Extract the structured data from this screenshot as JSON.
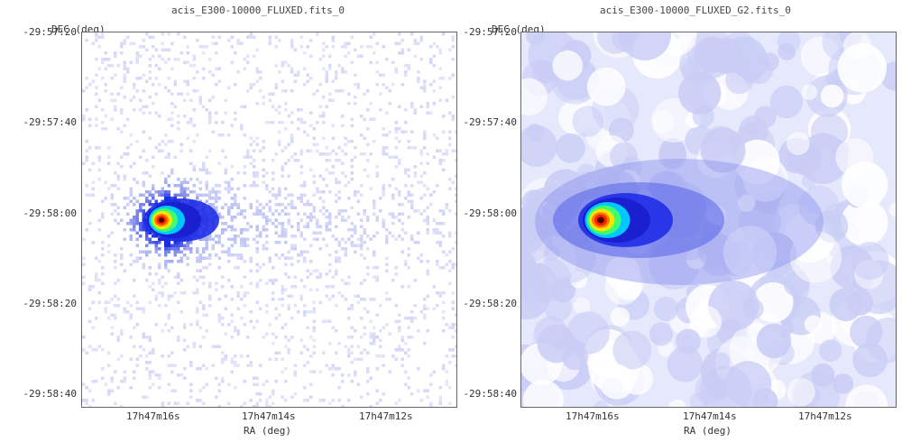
{
  "chart_data": [
    {
      "type": "heatmap",
      "title": "acis_E300-10000_FLUXED.fits_0",
      "xlabel": "RA (deg)",
      "ylabel": "DEC (deg)",
      "x_ticks": [
        "17h47m16s",
        "17h47m14s",
        "17h47m12s"
      ],
      "y_ticks": [
        "-29:57:20",
        "-29:57:40",
        "-29:58:00",
        "-29:58:20",
        "-29:58:40"
      ],
      "source": {
        "ra": "17h47m16s",
        "dec": "-29:58:00"
      },
      "style": "binned"
    },
    {
      "type": "heatmap",
      "title": "acis_E300-10000_FLUXED_G2.fits_0",
      "xlabel": "RA (deg)",
      "ylabel": "DEC (deg)",
      "x_ticks": [
        "17h47m16s",
        "17h47m14s",
        "17h47m12s"
      ],
      "y_ticks": [
        "-29:57:20",
        "-29:57:40",
        "-29:58:00",
        "-29:58:20",
        "-29:58:40"
      ],
      "source": {
        "ra": "17h47m16s",
        "dec": "-29:58:00"
      },
      "style": "smoothed"
    }
  ],
  "colors": {
    "background": "#ffffff",
    "low": "#b4b8f0",
    "mid": "#1a2ee0",
    "high": "#ff2a00",
    "peak": "#2a0000"
  }
}
